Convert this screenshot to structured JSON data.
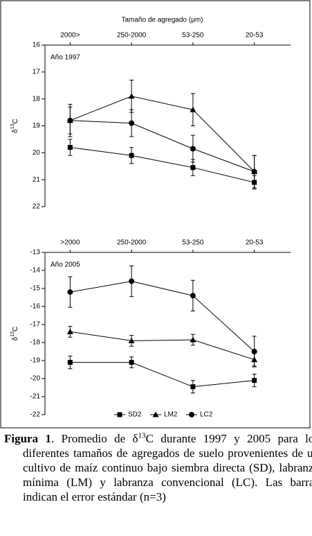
{
  "chart_data": [
    {
      "type": "line",
      "xlabel": "Tamaño de agregado (μm)",
      "annotation": "Año 1997",
      "ylabel": {
        "base": "δ",
        "sup": "13",
        "end": "C"
      },
      "categories": [
        "2000>",
        "250-2000",
        "53-250",
        "20-53"
      ],
      "ylim": [
        22,
        16
      ],
      "yticks": [
        16,
        17,
        18,
        19,
        20,
        21,
        22
      ],
      "series": [
        {
          "name": "SD2",
          "color": "#000000",
          "marker": "square",
          "values": [
            19.8,
            20.1,
            20.55,
            21.1
          ],
          "errors": [
            0.3,
            0.3,
            0.3,
            0.25
          ]
        },
        {
          "name": "LM2",
          "color": "#000000",
          "marker": "triangle",
          "values": [
            18.8,
            17.9,
            18.4,
            20.7
          ],
          "errors": [
            0.5,
            0.6,
            0.6,
            0.6
          ]
        },
        {
          "name": "LC2",
          "color": "#000000",
          "marker": "circle",
          "values": [
            18.8,
            18.9,
            19.85,
            20.7
          ],
          "errors": [
            0.6,
            0.5,
            0.5,
            0.6
          ]
        }
      ]
    },
    {
      "type": "line",
      "annotation": "Año 2005",
      "ylabel": {
        "base": "δ",
        "sup": "13",
        "end": "C"
      },
      "categories": [
        ">2000",
        "250-2000",
        "53-250",
        "20-53"
      ],
      "ylim": [
        -22,
        -13
      ],
      "yticks": [
        -22,
        -21,
        -20,
        -19,
        -18,
        -17,
        -16,
        -15,
        -14,
        -13
      ],
      "legend": "bottom",
      "series": [
        {
          "name": "SD2",
          "color": "#000000",
          "marker": "square",
          "values": [
            -19.1,
            -19.1,
            -20.45,
            -20.1
          ],
          "errors": [
            0.35,
            0.3,
            0.35,
            0.35
          ]
        },
        {
          "name": "LM2",
          "color": "#000000",
          "marker": "triangle",
          "values": [
            -17.4,
            -17.9,
            -17.85,
            -18.95
          ],
          "errors": [
            0.3,
            0.3,
            0.3,
            0.35
          ]
        },
        {
          "name": "LC2",
          "color": "#000000",
          "marker": "circle",
          "values": [
            -15.2,
            -14.6,
            -15.4,
            -18.5
          ],
          "errors": [
            0.85,
            0.85,
            0.85,
            0.85
          ]
        }
      ]
    }
  ],
  "caption": {
    "label": "Figura 1",
    "before": ". Promedio de δ",
    "sup": "13",
    "after": "C durante 1997 y 2005 para los diferentes tamaños de agregados de suelo provenientes de un cultivo de maíz continuo bajo siembra directa (SD), labranza mínima (LM) y labranza convencional (LC). Las barras indican el error estándar (n=3)"
  }
}
